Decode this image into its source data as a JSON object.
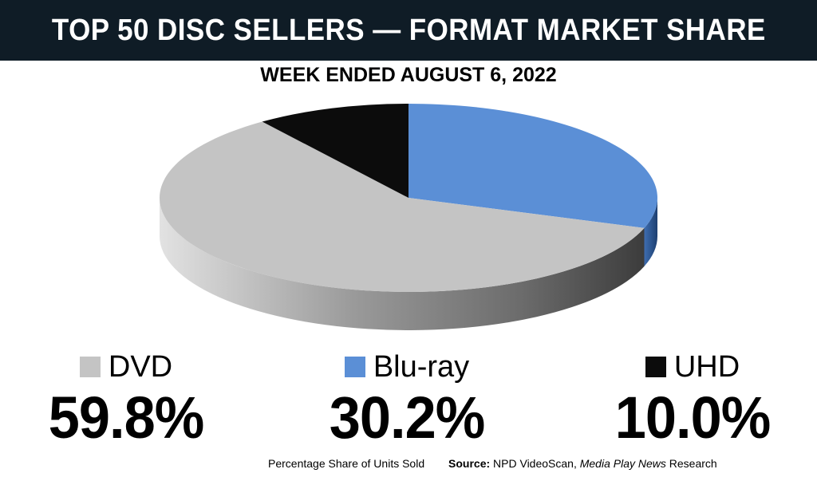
{
  "header": {
    "title": "TOP 50 DISC SELLERS — FORMAT MARKET SHARE"
  },
  "subtitle": "WEEK ENDED AUGUST 6, 2022",
  "legend": [
    {
      "label": "DVD",
      "value": "59.8%",
      "color": "#c4c4c4"
    },
    {
      "label": "Blu-ray",
      "value": "30.2%",
      "color": "#5b8fd6"
    },
    {
      "label": "UHD",
      "value": "10.0%",
      "color": "#0c0c0c"
    }
  ],
  "footer": {
    "note": "Percentage Share of Units Sold",
    "source_label": "Source:",
    "source_text": "NPD VideoScan,",
    "source_italic": "Media Play News",
    "source_suffix": "Research"
  },
  "chart_data": {
    "type": "pie",
    "title": "TOP 50 DISC SELLERS — FORMAT MARKET SHARE",
    "subtitle": "WEEK ENDED AUGUST 6, 2022",
    "categories": [
      "DVD",
      "Blu-ray",
      "UHD"
    ],
    "values": [
      59.8,
      30.2,
      10.0
    ],
    "colors": [
      "#c4c4c4",
      "#5b8fd6",
      "#0c0c0c"
    ],
    "style": "3d"
  }
}
